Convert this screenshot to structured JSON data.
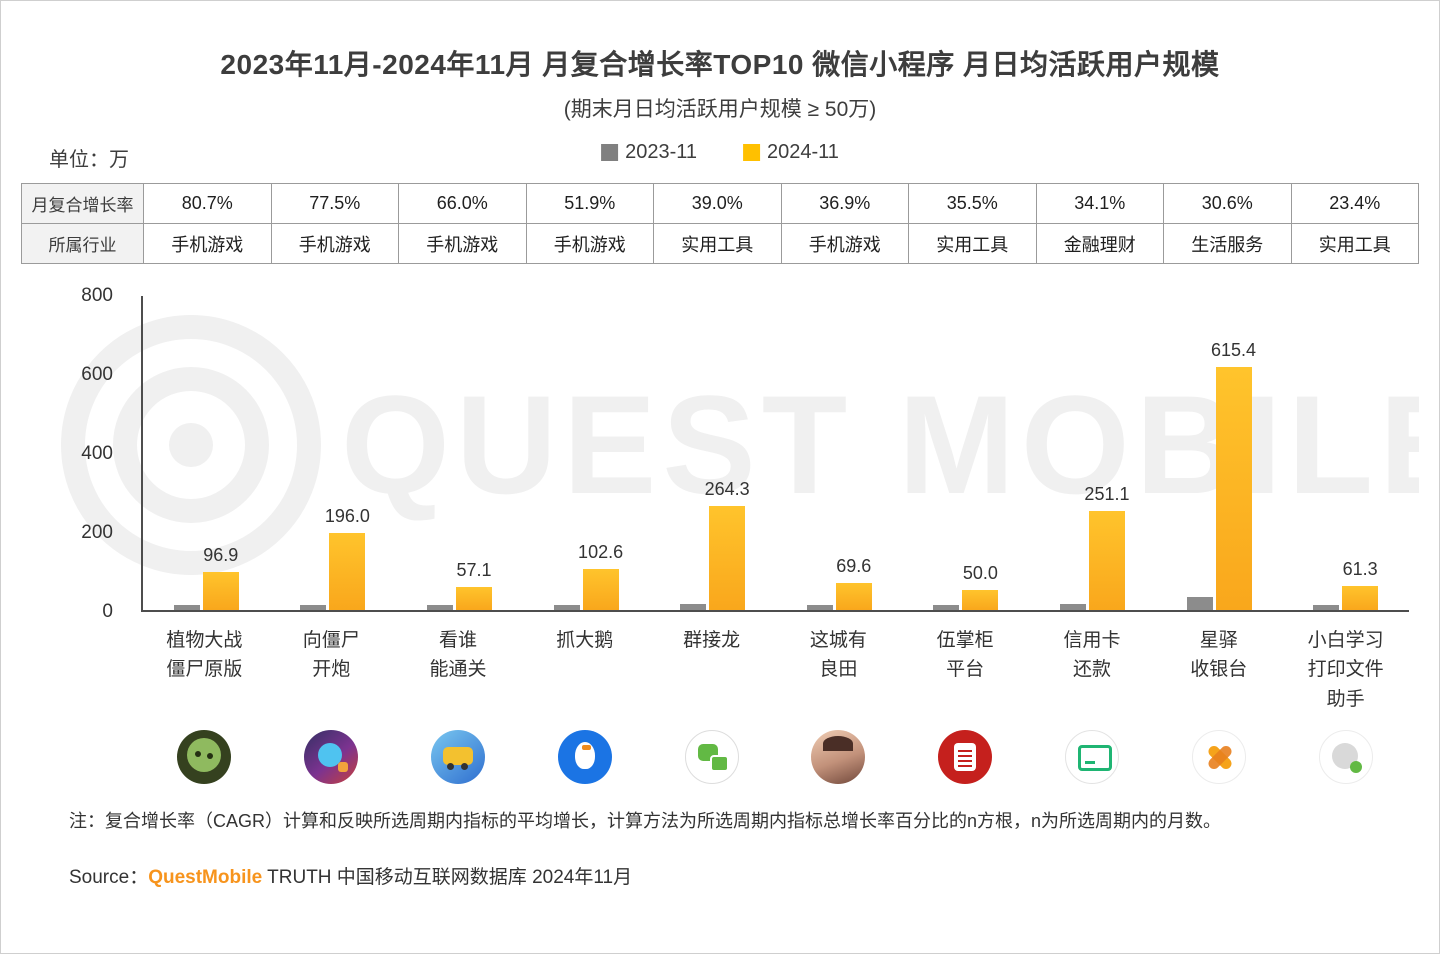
{
  "header": {
    "title": "2023年11月-2024年11月 月复合增长率TOP10 微信小程序 月日均活跃用户规模",
    "subtitle": "(期末月日均活跃用户规模 ≥ 50万)"
  },
  "meta": {
    "unit_label": "单位：万",
    "legend": [
      {
        "label": "2023-11",
        "color": "#808080"
      },
      {
        "label": "2024-11",
        "color": "#ffc000"
      }
    ]
  },
  "table": {
    "rows": [
      {
        "label": "月复合增长率",
        "values": [
          "80.7%",
          "77.5%",
          "66.0%",
          "51.9%",
          "39.0%",
          "36.9%",
          "35.5%",
          "34.1%",
          "30.6%",
          "23.4%"
        ]
      },
      {
        "label": "所属行业",
        "values": [
          "手机游戏",
          "手机游戏",
          "手机游戏",
          "手机游戏",
          "实用工具",
          "手机游戏",
          "实用工具",
          "金融理财",
          "生活服务",
          "实用工具"
        ]
      }
    ]
  },
  "chart_data": {
    "type": "bar",
    "title": "2023年11月-2024年11月 月复合增长率TOP10 微信小程序 月日均活跃用户规模",
    "subtitle": "(期末月日均活跃用户规模 ≥ 50万)",
    "unit": "万",
    "ylim": [
      0,
      800
    ],
    "yticks": [
      0,
      200,
      400,
      600,
      800
    ],
    "grid": false,
    "legend_position": "top",
    "categories": [
      "植物大战僵尸原版",
      "向僵尸开炮",
      "看谁能通关",
      "抓大鹅",
      "群接龙",
      "这城有良田",
      "伍掌柜平台",
      "信用卡还款",
      "星驿收银台",
      "小白学习打印文件助手"
    ],
    "category_label_lines": [
      [
        "植物大战",
        "僵尸原版"
      ],
      [
        "向僵尸",
        "开炮"
      ],
      [
        "看谁",
        "能通关"
      ],
      [
        "抓大鹅"
      ],
      [
        "群接龙"
      ],
      [
        "这城有",
        "良田"
      ],
      [
        "伍掌柜",
        "平台"
      ],
      [
        "信用卡",
        "还款"
      ],
      [
        "星驿",
        "收银台"
      ],
      [
        "小白学习",
        "打印文件",
        "助手"
      ]
    ],
    "series": [
      {
        "name": "2023-11",
        "color": "#8c8c8c",
        "labeled": false,
        "values_estimated_from_pixels": true,
        "values": [
          12,
          12,
          10,
          12,
          14,
          12,
          10,
          14,
          34,
          12
        ]
      },
      {
        "name": "2024-11",
        "color": "#ffc000",
        "labeled": true,
        "values": [
          96.9,
          196.0,
          57.1,
          102.6,
          264.3,
          69.6,
          50.0,
          251.1,
          615.4,
          61.3
        ],
        "labels": [
          "96.9",
          "196.0",
          "57.1",
          "102.6",
          "264.3",
          "69.6",
          "50.0",
          "251.1",
          "615.4",
          "61.3"
        ]
      }
    ],
    "growth_rates": [
      "80.7%",
      "77.5%",
      "66.0%",
      "51.9%",
      "39.0%",
      "36.9%",
      "35.5%",
      "34.1%",
      "30.6%",
      "23.4%"
    ],
    "industries": [
      "手机游戏",
      "手机游戏",
      "手机游戏",
      "手机游戏",
      "实用工具",
      "手机游戏",
      "实用工具",
      "金融理财",
      "生活服务",
      "实用工具"
    ]
  },
  "icons": [
    {
      "name": "plants-vs-zombies-app-icon"
    },
    {
      "name": "xiang-jiangshi-kaipao-app-icon"
    },
    {
      "name": "kan-shei-neng-tongguan-app-icon"
    },
    {
      "name": "zhua-da-e-app-icon"
    },
    {
      "name": "qun-jielong-app-icon"
    },
    {
      "name": "zhecheng-you-liangtian-app-icon"
    },
    {
      "name": "wu-zhanggui-app-icon"
    },
    {
      "name": "xinyongka-huankuan-app-icon"
    },
    {
      "name": "xingyi-shouyintai-app-icon"
    },
    {
      "name": "xiaobai-xuexi-dayin-app-icon"
    }
  ],
  "watermark": {
    "text": "QUEST MOBILE"
  },
  "note": "注：复合增长率（CAGR）计算和反映所选周期内指标的平均增长，计算方法为所选周期内指标总增长率百分比的n方根，n为所选周期内的月数。",
  "source": {
    "prefix": "Source：",
    "brand": "QuestMobile",
    "suffix": " TRUTH 中国移动互联网数据库 2024年11月",
    "brand_color": "#f7941d"
  }
}
